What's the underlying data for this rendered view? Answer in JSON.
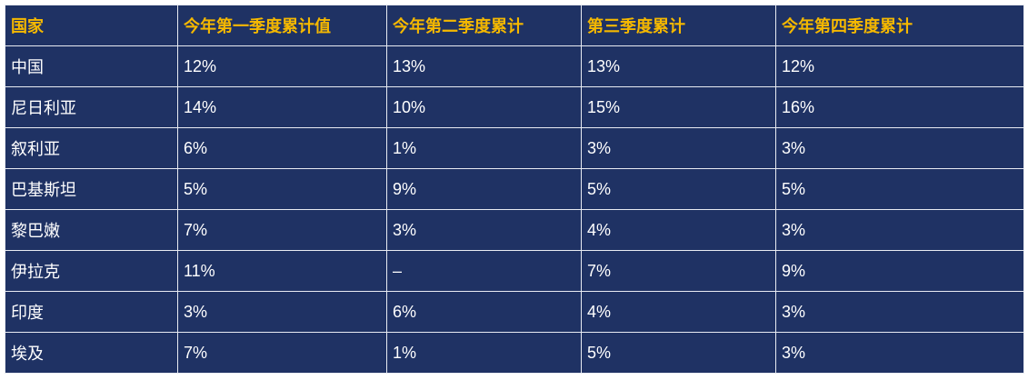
{
  "table": {
    "headers": [
      "国家",
      "今年第一季度累计值",
      "今年第二季度累计",
      "第三季度累计",
      "今年第四季度累计"
    ],
    "rows": [
      [
        "中国",
        "12%",
        "13%",
        "13%",
        "12%"
      ],
      [
        "尼日利亚",
        "14%",
        "10%",
        "15%",
        "16%"
      ],
      [
        "叙利亚",
        "6%",
        "1%",
        "3%",
        "3%"
      ],
      [
        "巴基斯坦",
        "5%",
        "9%",
        "5%",
        "5%"
      ],
      [
        "黎巴嫩",
        "7%",
        "3%",
        "4%",
        "3%"
      ],
      [
        "伊拉克",
        "11%",
        "–",
        "7%",
        "9%"
      ],
      [
        "印度",
        "3%",
        "6%",
        "4%",
        "3%"
      ],
      [
        "埃及",
        "7%",
        "1%",
        "5%",
        "3%"
      ]
    ]
  },
  "colors": {
    "background": "#1f3264",
    "header_text": "#f5b800",
    "cell_text": "#ffffff",
    "grid": "#e8ebf2"
  }
}
